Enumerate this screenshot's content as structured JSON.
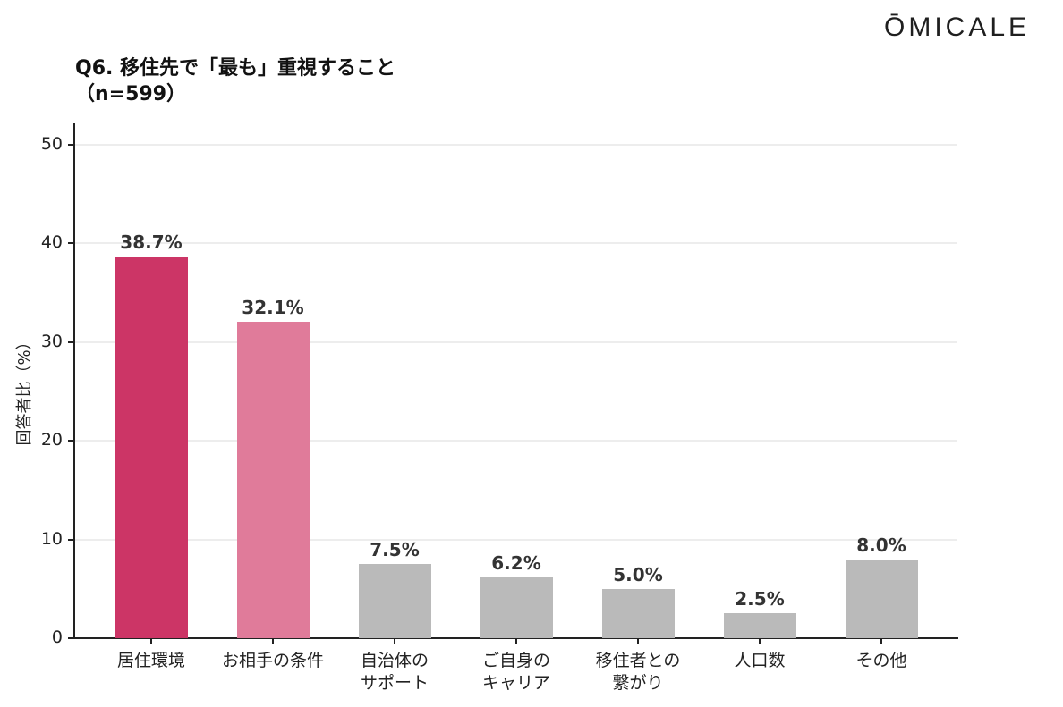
{
  "brand": {
    "logo_text": "ŌMICALE"
  },
  "header": {
    "title": "Q6. 移住先で「最も」重視すること",
    "subtitle": "（n=599）"
  },
  "colors": {
    "highlight_1": "#cc3566",
    "highlight_2": "#e07b9a",
    "neutral": "#bababa",
    "grid": "#ededed",
    "axis": "#222222"
  },
  "chart_data": {
    "type": "bar",
    "title": "Q6. 移住先で「最も」重視すること（n=599）",
    "xlabel": "",
    "ylabel": "回答者比（%）",
    "ylim": [
      0,
      50
    ],
    "yticks": [
      0,
      10,
      20,
      30,
      40,
      50
    ],
    "grid": true,
    "legend": null,
    "categories": [
      "居住環境",
      "お相手の条件",
      "自治体のサポート",
      "ご自身のキャリア",
      "移住者との繋がり",
      "人口数",
      "その他"
    ],
    "category_lines": [
      [
        "居住環境"
      ],
      [
        "お相手の条件"
      ],
      [
        "自治体の",
        "サポート"
      ],
      [
        "ご自身の",
        "キャリア"
      ],
      [
        "移住者との",
        "繋がり"
      ],
      [
        "人口数"
      ],
      [
        "その他"
      ]
    ],
    "values": [
      38.7,
      32.1,
      7.5,
      6.2,
      5.0,
      2.5,
      8.0
    ],
    "value_labels": [
      "38.7%",
      "32.1%",
      "7.5%",
      "6.2%",
      "5.0%",
      "2.5%",
      "8.0%"
    ],
    "bar_colors": [
      "#cc3566",
      "#e07b9a",
      "#bababa",
      "#bababa",
      "#bababa",
      "#bababa",
      "#bababa"
    ]
  }
}
